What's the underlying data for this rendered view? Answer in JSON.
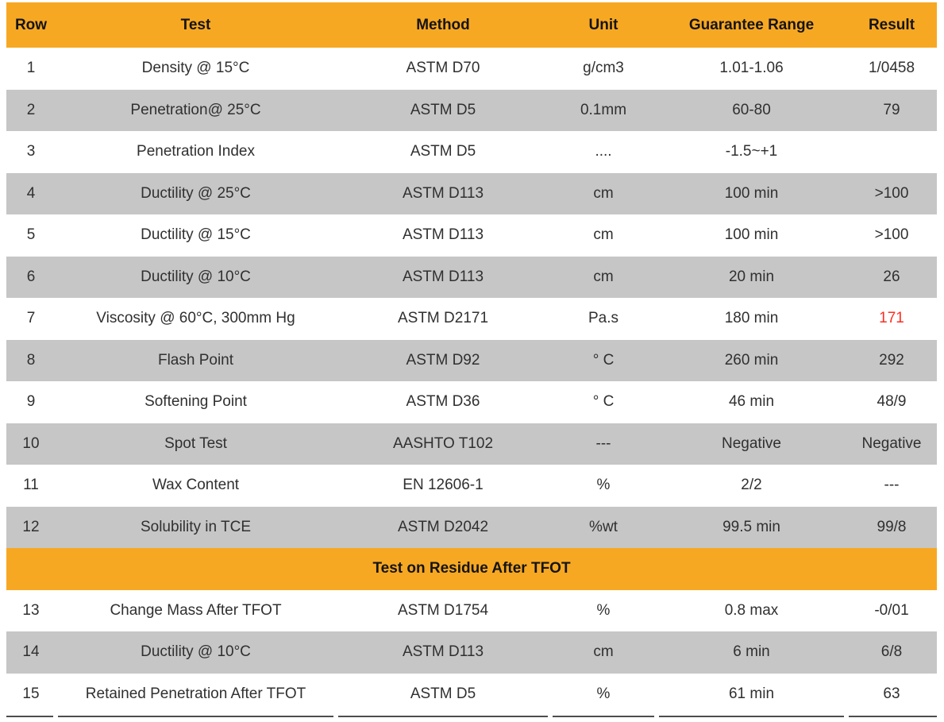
{
  "colors": {
    "accent": "#f7a823",
    "zebra_row": "#c6c6c6",
    "highlight_result": "#fa2f24",
    "bottom_rule": "#4d4d4d",
    "body_text": "#303030",
    "header_text": "#141414"
  },
  "table": {
    "columns": [
      "Row",
      "Test",
      "Method",
      "Unit",
      "Guarantee Range",
      "Result"
    ],
    "rows": [
      {
        "row": "1",
        "test": "Density @ 15°C",
        "method": "ASTM D70",
        "unit": "g/cm3",
        "range": "1.01-1.06",
        "result": "1/0458"
      },
      {
        "row": "2",
        "test": "Penetration@ 25°C",
        "method": "ASTM D5",
        "unit": "0.1mm",
        "range": "60-80",
        "result": "79"
      },
      {
        "row": "3",
        "test": "Penetration Index",
        "method": "ASTM D5",
        "unit": "....",
        "range": "-1.5~+1",
        "result": ""
      },
      {
        "row": "4",
        "test": "Ductility @ 25°C",
        "method": "ASTM D113",
        "unit": "cm",
        "range": "100 min",
        "result": ">100"
      },
      {
        "row": "5",
        "test": "Ductility @ 15°C",
        "method": "ASTM D113",
        "unit": "cm",
        "range": "100 min",
        "result": ">100"
      },
      {
        "row": "6",
        "test": "Ductility @ 10°C",
        "method": "ASTM D113",
        "unit": "cm",
        "range": "20 min",
        "result": "26"
      },
      {
        "row": "7",
        "test": "Viscosity @ 60°C, 300mm Hg",
        "method": "ASTM D2171",
        "unit": "Pa.s",
        "range": "180 min",
        "result": "171",
        "result_highlight": true
      },
      {
        "row": "8",
        "test": "Flash Point",
        "method": "ASTM D92",
        "unit": "° C",
        "range": "260 min",
        "result": "292"
      },
      {
        "row": "9",
        "test": "Softening Point",
        "method": "ASTM D36",
        "unit": "° C",
        "range": "46 min",
        "result": "48/9"
      },
      {
        "row": "10",
        "test": "Spot Test",
        "method": "AASHTO T102",
        "unit": "---",
        "range": "Negative",
        "result": "Negative"
      },
      {
        "row": "11",
        "test": "Wax Content",
        "method": "EN 12606-1",
        "unit": "%",
        "range": "2/2",
        "result": "---"
      },
      {
        "row": "12",
        "test": "Solubility in TCE",
        "method": "ASTM D2042",
        "unit": "%wt",
        "range": "99.5 min",
        "result": "99/8"
      }
    ],
    "banner": "Test on Residue After TFOT",
    "rows_after_banner": [
      {
        "row": "13",
        "test": "Change Mass After TFOT",
        "method": "ASTM D1754",
        "unit": "%",
        "range": "0.8 max",
        "result": "-0/01"
      },
      {
        "row": "14",
        "test": "Ductility @ 10°C",
        "method": "ASTM D113",
        "unit": "cm",
        "range": "6 min",
        "result": "6/8"
      },
      {
        "row": "15",
        "test": "Retained Penetration After TFOT",
        "method": "ASTM D5",
        "unit": "%",
        "range": "61 min",
        "result": "63"
      }
    ]
  }
}
